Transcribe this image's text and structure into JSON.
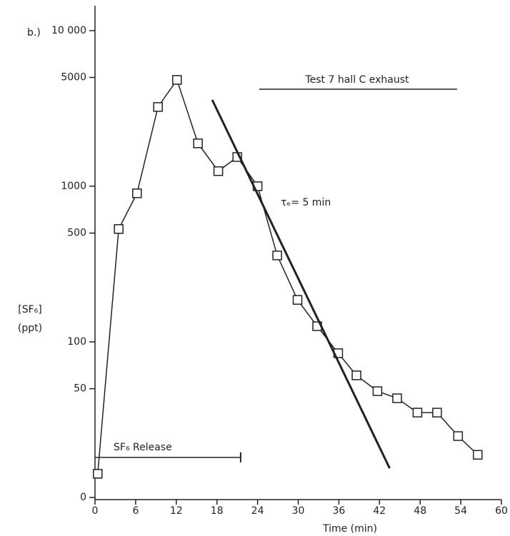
{
  "chart_data": {
    "type": "line",
    "panel_label": "b.)",
    "title": "Test 7 hall C exhaust",
    "annotation": "τₑ= 5 min",
    "ylabel": [
      "[SF₆]",
      "(ppt)"
    ],
    "xlabel": "Time (min)",
    "log_y": true,
    "color": "#222222",
    "xlim": [
      0,
      60
    ],
    "xticks": [
      0,
      6,
      12,
      18,
      24,
      30,
      36,
      42,
      48,
      54,
      60
    ],
    "ylim": [
      10,
      14000
    ],
    "yticks": [
      {
        "value": 10,
        "label": "0"
      },
      50,
      100,
      500,
      1000,
      5000,
      {
        "value": 10000,
        "label": "10 000"
      }
    ],
    "x": [
      0.4,
      3.5,
      6.2,
      9.3,
      12.1,
      15.2,
      18.2,
      21.0,
      24.0,
      26.9,
      29.9,
      32.8,
      35.9,
      38.6,
      41.7,
      44.6,
      47.6,
      50.5,
      53.6,
      56.5
    ],
    "values": [
      14.2,
      531,
      900,
      3230,
      4820,
      1885,
      1250,
      1540,
      1000,
      359,
      186,
      126,
      84.5,
      60.9,
      48.2,
      43.4,
      35.1,
      35.1,
      24.8,
      18.8
    ],
    "fit_line": {
      "x": [
        17.3,
        43.5
      ],
      "values": [
        3590,
        15.4
      ]
    },
    "release": {
      "label": "SF₆ Release",
      "x": [
        0,
        21.5
      ],
      "value": 18.1
    }
  }
}
